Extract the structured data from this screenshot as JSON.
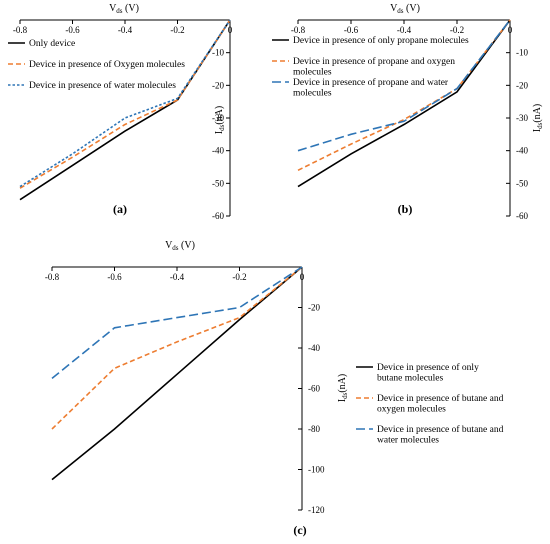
{
  "chart_data": [
    {
      "type": "line",
      "panel_label": "(a)",
      "xlabel": "V_ds (V)",
      "xlabel_main": "V",
      "xlabel_sub": "ds",
      "xlabel_unit": " (V)",
      "ylabel_main": "I",
      "ylabel_sub": "ds",
      "ylabel_unit": "(nA)",
      "x_ticks": [
        "-0.8",
        "-0.6",
        "-0.4",
        "-0.2",
        "0"
      ],
      "y_ticks": [
        "0",
        "-10",
        "-20",
        "-30",
        "-40",
        "-50",
        "-60"
      ],
      "xlim": [
        -0.8,
        0
      ],
      "ylim": [
        -60,
        0
      ],
      "x": [
        -0.8,
        -0.6,
        -0.4,
        -0.2,
        0
      ],
      "series": [
        {
          "name": "Only device",
          "color": "#000000",
          "dash": "solid",
          "values": [
            -55,
            -44.5,
            -34,
            -24.5,
            0
          ]
        },
        {
          "name": "Device in presence of Oxygen molecules",
          "color": "#ED7D31",
          "dash": "dash",
          "values": [
            -51.5,
            -42,
            -32,
            -24.5,
            0
          ]
        },
        {
          "name": "Device in presence of water molecules",
          "color": "#2E75B6",
          "dash": "dot",
          "values": [
            -51,
            -41,
            -30,
            -24,
            0
          ]
        }
      ]
    },
    {
      "type": "line",
      "panel_label": "(b)",
      "xlabel": "V_ds (V)",
      "xlabel_main": "V",
      "xlabel_sub": "ds",
      "xlabel_unit": " (V)",
      "ylabel_main": "I",
      "ylabel_sub": "ds",
      "ylabel_unit": "(nA)",
      "x_ticks": [
        "-0.8",
        "-0.6",
        "-0.4",
        "-0.2",
        "0"
      ],
      "y_ticks": [
        "0",
        "-10",
        "-20",
        "-30",
        "-40",
        "-50",
        "-60"
      ],
      "xlim": [
        -0.8,
        0
      ],
      "ylim": [
        -60,
        0
      ],
      "x": [
        -0.8,
        -0.6,
        -0.4,
        -0.2,
        0
      ],
      "series": [
        {
          "name": "Device in presence of only propane molecules",
          "color": "#000000",
          "dash": "solid",
          "values": [
            -51,
            -41,
            -32,
            -22,
            0
          ]
        },
        {
          "name": "Device in presence of propane and oxygen molecules",
          "color": "#ED7D31",
          "dash": "dash",
          "values": [
            -46,
            -38,
            -30.5,
            -21,
            0
          ]
        },
        {
          "name": "Device in presence of propane and water molecules",
          "color": "#2E75B6",
          "dash": "longdash",
          "values": [
            -40,
            -35,
            -31,
            -21,
            0
          ]
        }
      ]
    },
    {
      "type": "line",
      "panel_label": "(c)",
      "xlabel": "V_ds (V)",
      "xlabel_main": "V",
      "xlabel_sub": "ds",
      "xlabel_unit": " (V)",
      "ylabel_main": "I",
      "ylabel_sub": "ds",
      "ylabel_unit": "(nA)",
      "x_ticks": [
        "-0.8",
        "-0.6",
        "-0.4",
        "-0.2",
        "0"
      ],
      "y_ticks": [
        "0",
        "-20",
        "-40",
        "-60",
        "-80",
        "-100",
        "-120"
      ],
      "xlim": [
        -0.8,
        0
      ],
      "ylim": [
        -120,
        0
      ],
      "x": [
        -0.8,
        -0.6,
        -0.4,
        -0.2,
        0
      ],
      "series": [
        {
          "name": "Device in presence of only butane molecules",
          "color": "#000000",
          "dash": "solid",
          "values": [
            -105,
            -80,
            -53,
            -26,
            0
          ]
        },
        {
          "name": "Device in presence of butane and oxygen molecules",
          "color": "#ED7D31",
          "dash": "dash",
          "values": [
            -80,
            -50,
            -37,
            -25,
            0
          ]
        },
        {
          "name": "Device in presence of butane and water molecules",
          "color": "#2E75B6",
          "dash": "longdash",
          "values": [
            -55,
            -30,
            -25,
            -20,
            0
          ]
        }
      ]
    }
  ]
}
